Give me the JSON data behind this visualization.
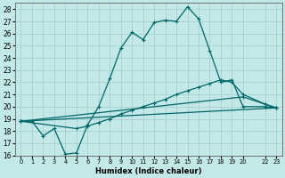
{
  "xlabel": "Humidex (Indice chaleur)",
  "bg_color": "#c2e8e8",
  "grid_color": "#a8d0d0",
  "line_color": "#006666",
  "ylim": [
    16,
    28.5
  ],
  "xlim": [
    -0.5,
    23.5
  ],
  "yticks": [
    16,
    17,
    18,
    19,
    20,
    21,
    22,
    23,
    24,
    25,
    26,
    27,
    28
  ],
  "xtick_positions": [
    0,
    1,
    2,
    3,
    4,
    5,
    6,
    7,
    8,
    9,
    10,
    11,
    12,
    13,
    14,
    15,
    16,
    17,
    18,
    19,
    20,
    22,
    23
  ],
  "xtick_labels": [
    "0",
    "1",
    "2",
    "3",
    "4",
    "5",
    "6",
    "7",
    "8",
    "9",
    "10",
    "11",
    "12",
    "13",
    "14",
    "15",
    "16",
    "17",
    "18",
    "19",
    "20",
    "22",
    "23"
  ],
  "curve1_x": [
    0,
    1,
    2,
    3,
    4,
    5,
    6,
    7,
    8,
    9,
    10,
    11,
    12,
    13,
    14,
    15,
    16,
    17,
    18,
    19,
    20,
    22,
    23
  ],
  "curve1_y": [
    18.8,
    18.8,
    17.6,
    18.2,
    16.1,
    16.2,
    18.5,
    20.0,
    22.3,
    24.8,
    26.1,
    25.5,
    26.9,
    27.1,
    27.0,
    28.2,
    27.2,
    24.6,
    22.0,
    22.2,
    20.0,
    20.0,
    19.9
  ],
  "curve2_x": [
    0,
    5,
    6,
    7,
    8,
    9,
    10,
    11,
    12,
    13,
    14,
    15,
    16,
    17,
    18,
    19,
    20,
    22,
    23
  ],
  "curve2_y": [
    18.8,
    18.2,
    18.4,
    18.7,
    19.0,
    19.4,
    19.7,
    20.0,
    20.3,
    20.6,
    21.0,
    21.3,
    21.6,
    21.9,
    22.2,
    22.0,
    21.0,
    20.2,
    19.9
  ],
  "curve3_x": [
    0,
    23
  ],
  "curve3_y": [
    18.8,
    19.9
  ],
  "curve4_x": [
    0,
    20,
    22,
    23
  ],
  "curve4_y": [
    18.8,
    20.8,
    20.2,
    19.9
  ]
}
